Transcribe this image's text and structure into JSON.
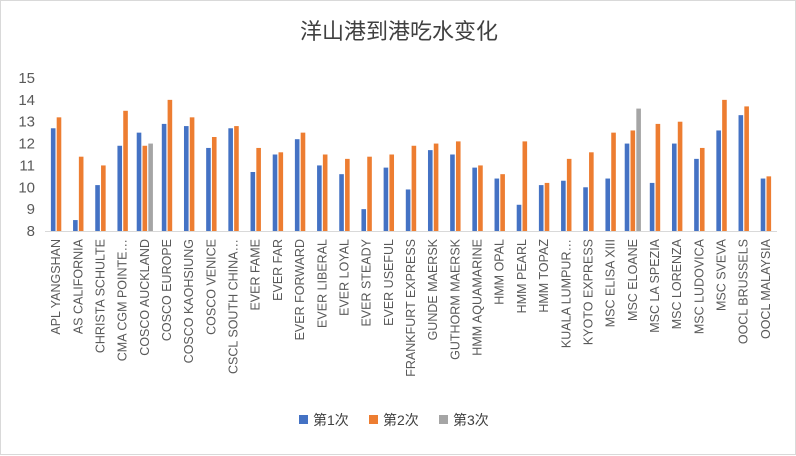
{
  "chart_data": {
    "type": "bar",
    "title": "洋山港到港吃水变化",
    "xlabel": "",
    "ylabel": "",
    "ylim": [
      8,
      15
    ],
    "yticks": [
      8,
      9,
      10,
      11,
      12,
      13,
      14,
      15
    ],
    "grid": false,
    "legend_position": "bottom",
    "categories": [
      "APL YANGSHAN",
      "AS CALIFORNIA",
      "CHRISTA SCHULTE",
      "CMA CGM POINTE…",
      "COSCO AUCKLAND",
      "COSCO EUROPE",
      "COSCO KAOHSIUNG",
      "COSCO VENICE",
      "CSCL SOUTH CHINA…",
      "EVER FAME",
      "EVER FAR",
      "EVER FORWARD",
      "EVER LIBERAL",
      "EVER LOYAL",
      "EVER STEADY",
      "EVER USEFUL",
      "FRANKFURT EXPRESS",
      "GUNDE MAERSK",
      "GUTHORM MAERSK",
      "HMM AQUAMARINE",
      "HMM OPAL",
      "HMM PEARL",
      "HMM TOPAZ",
      "KUALA LUMPUR…",
      "KYOTO EXPRESS",
      "MSC ELISA XIII",
      "MSC ELOANE",
      "MSC LA SPEZIA",
      "MSC LORENZA",
      "MSC LUDOVICA",
      "MSC SVEVA",
      "OOCL BRUSSELS",
      "OOCL MALAYSIA"
    ],
    "series": [
      {
        "name": "第1次",
        "color": "#4472c4",
        "values": [
          12.7,
          8.5,
          10.1,
          11.9,
          12.5,
          12.9,
          12.8,
          11.8,
          12.7,
          10.7,
          11.5,
          12.2,
          11.0,
          10.6,
          9.0,
          10.9,
          9.9,
          11.7,
          11.5,
          10.9,
          10.4,
          9.2,
          10.1,
          10.3,
          10.0,
          10.4,
          12.0,
          10.2,
          12.0,
          11.3,
          12.6,
          13.3,
          10.4
        ]
      },
      {
        "name": "第2次",
        "color": "#ed7d31",
        "values": [
          13.2,
          11.4,
          11.0,
          13.5,
          11.9,
          14.0,
          13.2,
          12.3,
          12.8,
          11.8,
          11.6,
          12.5,
          11.5,
          11.3,
          11.4,
          11.5,
          11.9,
          12.0,
          12.1,
          11.0,
          10.6,
          12.1,
          10.2,
          11.3,
          11.6,
          12.5,
          12.6,
          12.9,
          13.0,
          11.8,
          14.0,
          13.7,
          10.5
        ]
      },
      {
        "name": "第3次",
        "color": "#a5a5a5",
        "values": [
          null,
          null,
          null,
          null,
          12.0,
          null,
          null,
          null,
          null,
          null,
          null,
          null,
          null,
          null,
          null,
          null,
          null,
          null,
          null,
          null,
          null,
          null,
          null,
          null,
          null,
          null,
          13.6,
          null,
          null,
          null,
          null,
          null,
          null
        ]
      }
    ]
  }
}
